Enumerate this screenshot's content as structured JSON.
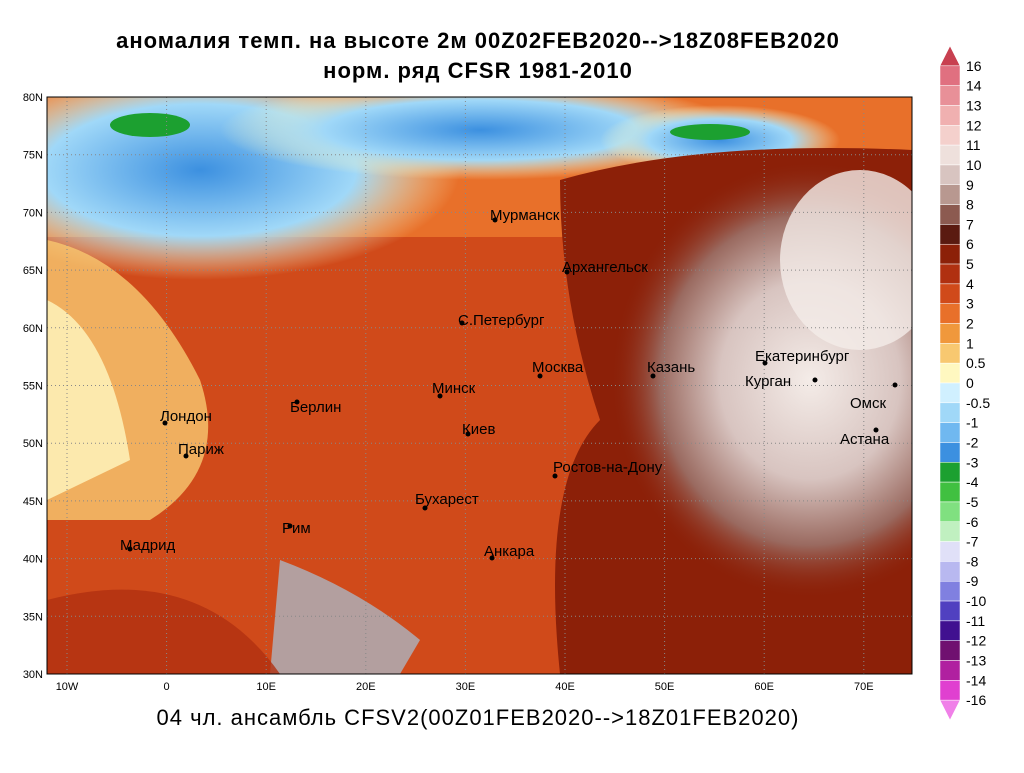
{
  "title": [
    "аномалия темп. на высоте 2м 00Z02FEB2020-->18Z08FEB2020",
    "норм. ряд CFSR 1981-2010"
  ],
  "footer": "04 чл. ансамбль CFSV2(00Z01FEB2020-->18Z01FEB2020)",
  "lat_labels": [
    "80N",
    "75N",
    "70N",
    "65N",
    "60N",
    "55N",
    "50N",
    "45N",
    "40N",
    "35N",
    "30N"
  ],
  "lon_labels": [
    "10W",
    "0",
    "10E",
    "20E",
    "30E",
    "40E",
    "50E",
    "60E",
    "70E"
  ],
  "cities": [
    "Мурманск",
    "Архангельск",
    "С.Петербург",
    "Москва",
    "Казань",
    "Екатеринбург",
    "Курган",
    "Омск",
    "Астана",
    "Минск",
    "Берлин",
    "Лондон",
    "Париж",
    "Киев",
    "Ростов-на-Дону",
    "Бухарест",
    "Рим",
    "Мадрид",
    "Анкара"
  ],
  "colorbar": {
    "labels": [
      16,
      14,
      13,
      12,
      11,
      10,
      9,
      8,
      7,
      6,
      5,
      4,
      3,
      2,
      1,
      0.5,
      0,
      -0.5,
      -1,
      -2,
      -3,
      -4,
      -5,
      -6,
      -7,
      -8,
      -9,
      -10,
      -11,
      -12,
      -13,
      -14,
      -16
    ],
    "colors": [
      "#c84050",
      "#e07080",
      "#e89098",
      "#f0b0b0",
      "#f4d0cc",
      "#eee0dc",
      "#d8c4c0",
      "#b89890",
      "#8c5a50",
      "#5a1a10",
      "#8c2008",
      "#b03010",
      "#d04a1a",
      "#e8702a",
      "#f0983c",
      "#f8c870",
      "#fff8c0",
      "#d0f0ff",
      "#a0d8f8",
      "#70b8f0",
      "#3c90e0",
      "#1ca030",
      "#40c040",
      "#80e080",
      "#c0f0c0",
      "#e0e0f8",
      "#b8b8f0",
      "#8080e0",
      "#5040c0",
      "#401090",
      "#701070",
      "#b020a0",
      "#e040d0",
      "#f080e8"
    ]
  }
}
